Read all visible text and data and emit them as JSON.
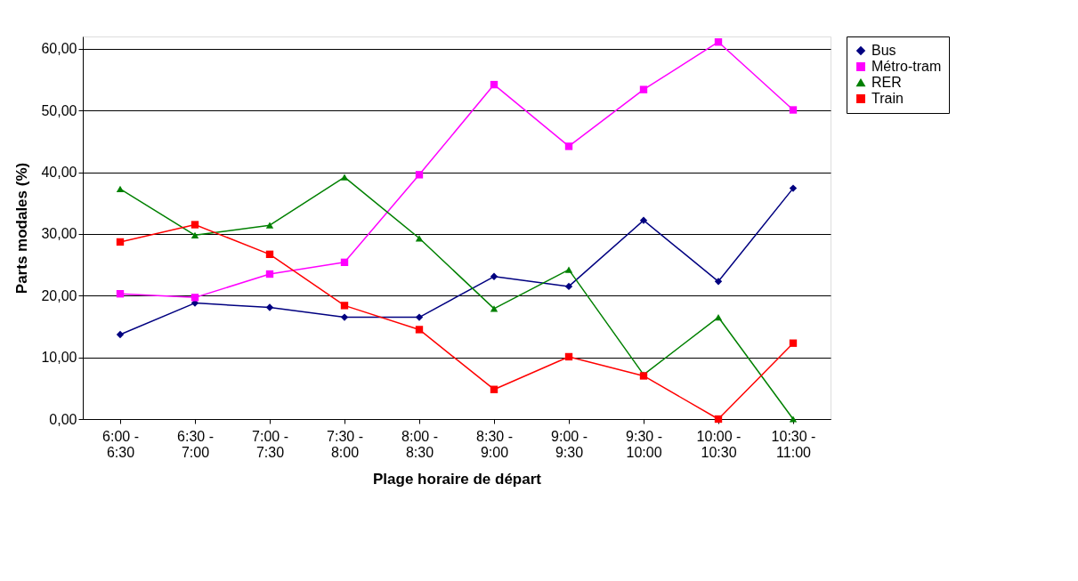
{
  "chart_data": {
    "type": "line",
    "xlabel": "Plage horaire de départ",
    "ylabel": "Parts modales (%)",
    "categories": [
      "6:00 - 6:30",
      "6:30 - 7:00",
      "7:00 - 7:30",
      "7:30 - 8:00",
      "8:00 - 8:30",
      "8:30 - 9:00",
      "9:00 - 9:30",
      "9:30 - 10:00",
      "10:00 - 10:30",
      "10:30 - 11:00"
    ],
    "series": [
      {
        "name": "Bus",
        "color": "#000080",
        "marker": "diamond",
        "values": [
          13.7,
          18.8,
          18.1,
          16.5,
          16.5,
          23.1,
          21.5,
          32.2,
          22.3,
          37.4
        ]
      },
      {
        "name": "Métro-tram",
        "color": "#ff00ff",
        "marker": "square",
        "values": [
          20.3,
          19.7,
          23.5,
          25.4,
          39.6,
          54.2,
          44.2,
          53.4,
          61.1,
          50.1
        ]
      },
      {
        "name": "RER",
        "color": "#008000",
        "marker": "triangle",
        "values": [
          37.3,
          29.8,
          31.4,
          39.2,
          29.3,
          17.9,
          24.2,
          7.2,
          16.5,
          0
        ]
      },
      {
        "name": "Train",
        "color": "#ff0000",
        "marker": "square",
        "values": [
          28.7,
          31.5,
          26.7,
          18.4,
          14.5,
          4.8,
          10.1,
          7.0,
          0,
          12.3
        ]
      }
    ],
    "ylim": [
      0,
      62
    ],
    "yticks": [
      {
        "value": 0,
        "label": "0,00"
      },
      {
        "value": 10,
        "label": "10,00"
      },
      {
        "value": 20,
        "label": "20,00"
      },
      {
        "value": 30,
        "label": "30,00"
      },
      {
        "value": 40,
        "label": "40,00"
      },
      {
        "value": 50,
        "label": "50,00"
      },
      {
        "value": 60,
        "label": "60,00"
      }
    ],
    "grid": "y",
    "legend": "right",
    "line_style": "solid"
  }
}
